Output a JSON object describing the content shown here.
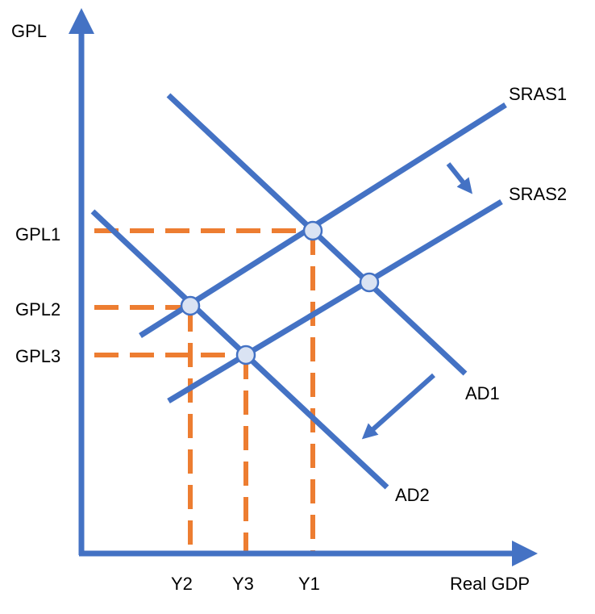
{
  "colors": {
    "curves": "#4472C4",
    "guides": "#ED7D31",
    "points_fill": "#DAE3F3",
    "text": "#000000"
  },
  "axes": {
    "y_label": "GPL",
    "x_label": "Real GDP"
  },
  "curves": {
    "sras1": "SRAS1",
    "sras2": "SRAS2",
    "ad1": "AD1",
    "ad2": "AD2"
  },
  "price_levels": {
    "gpl1": "GPL1",
    "gpl2": "GPL2",
    "gpl3": "GPL3"
  },
  "outputs": {
    "y1": "Y1",
    "y2": "Y2",
    "y3": "Y3"
  },
  "shift_arrows": {
    "sras": "shift-right-down-icon",
    "ad": "shift-left-down-icon"
  }
}
